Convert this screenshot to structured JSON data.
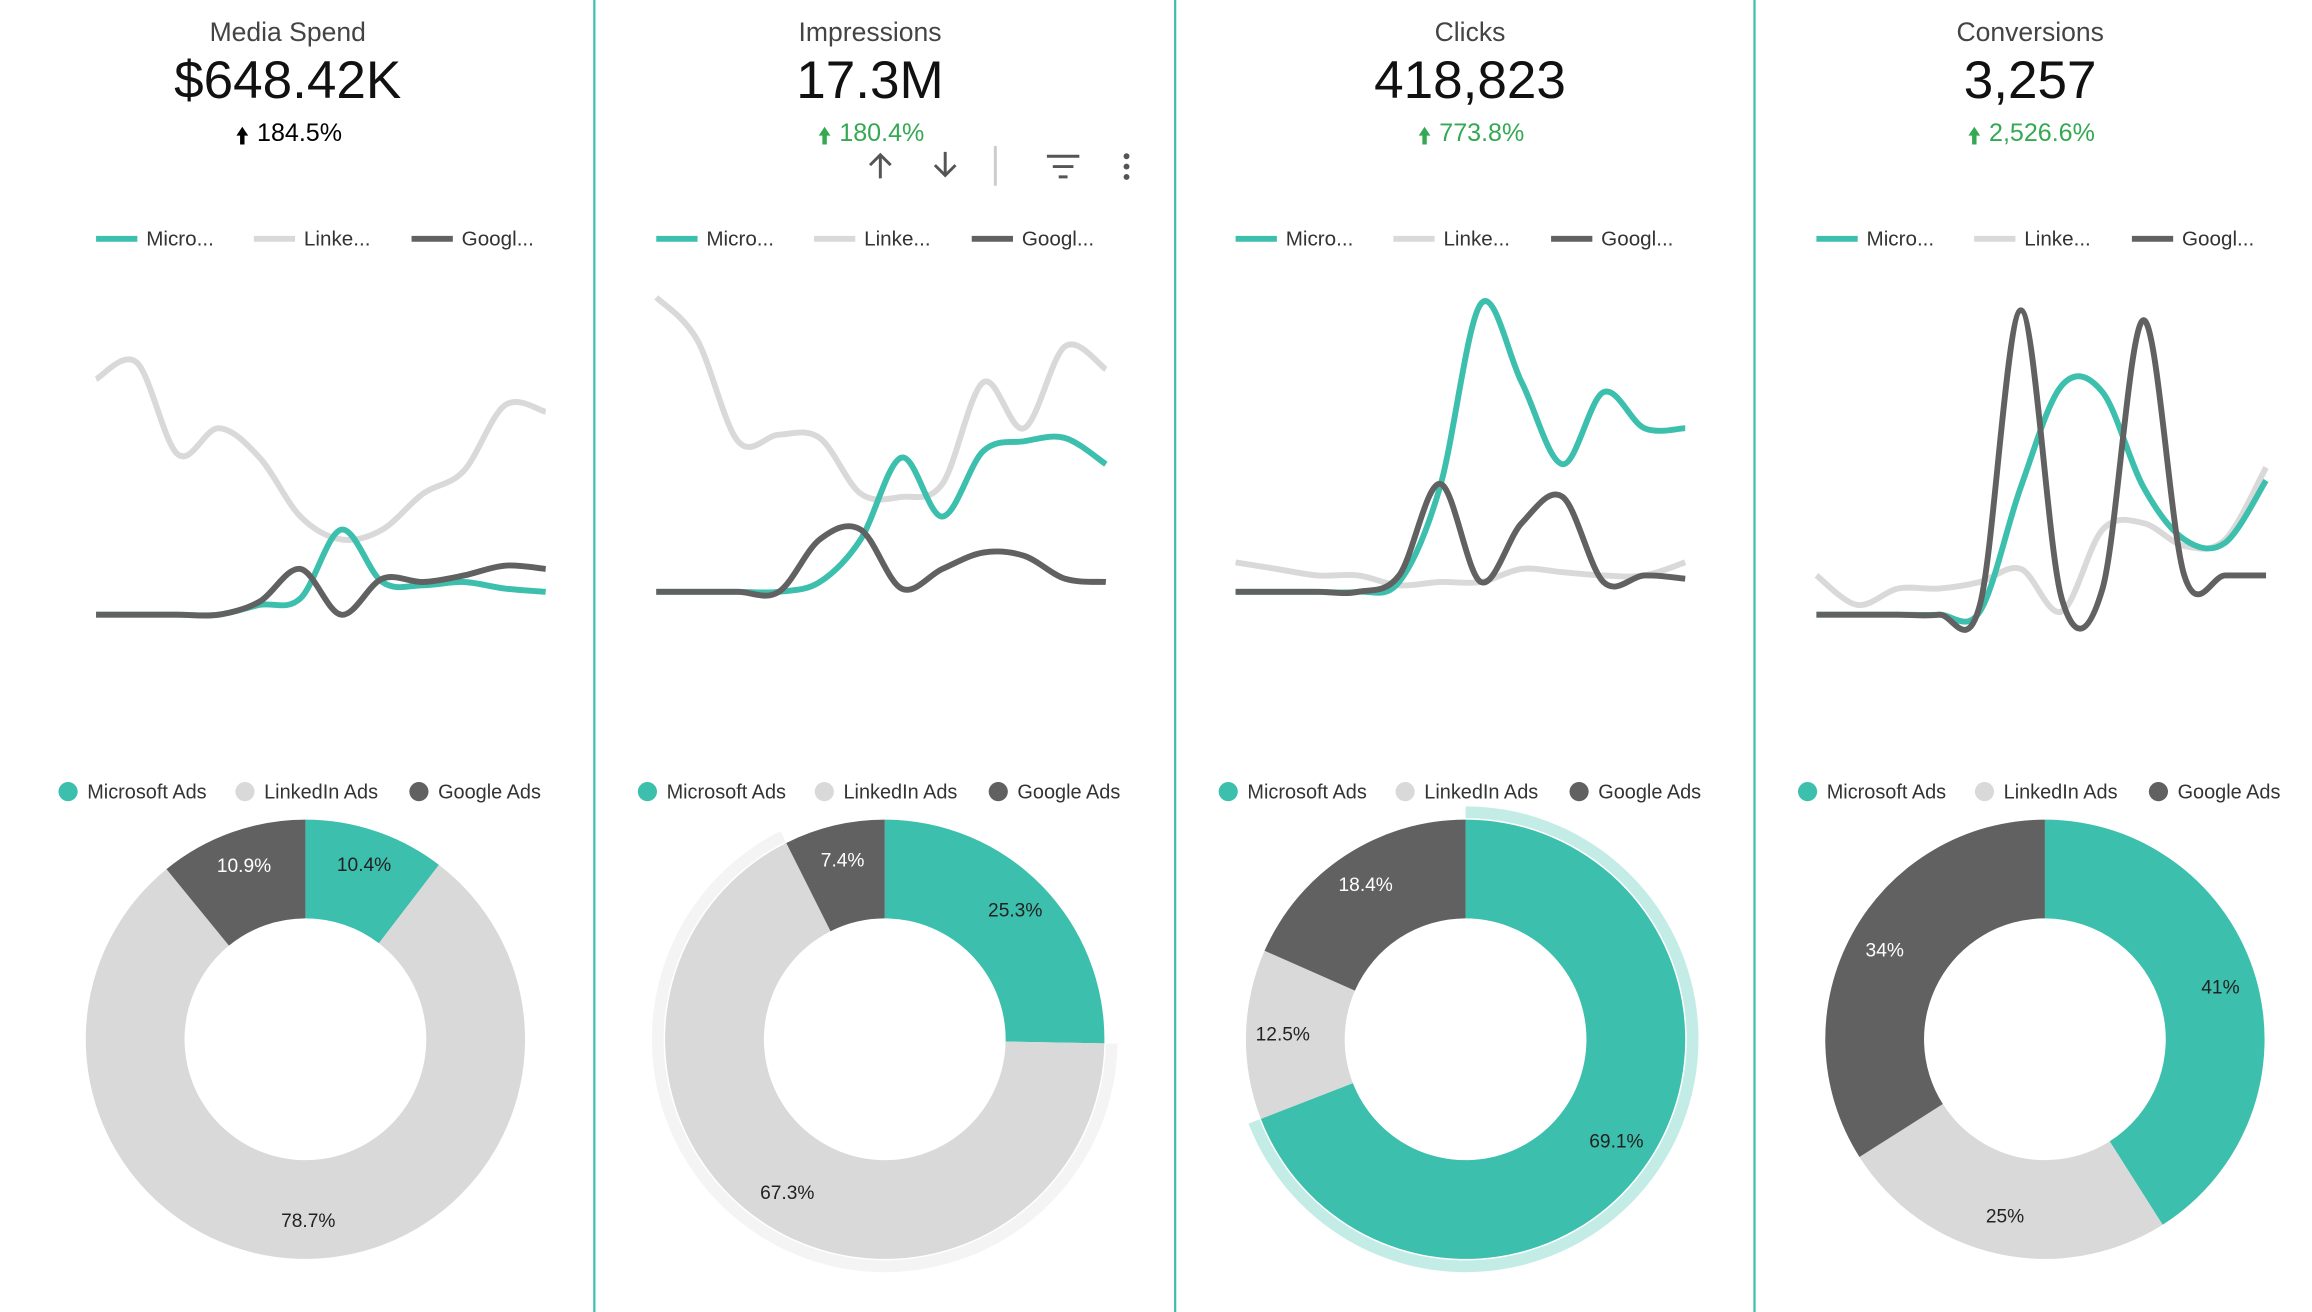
{
  "scorecards": [
    {
      "title": "Media Spend",
      "value": "$648.42K",
      "change": "184.5%",
      "change_color": "#000000"
    },
    {
      "title": "Impressions",
      "value": "17.3M",
      "change": "180.4%",
      "change_color": "#34a853"
    },
    {
      "title": "Clicks",
      "value": "418,823",
      "change": "773.8%",
      "change_color": "#34a853"
    },
    {
      "title": "Conversions",
      "value": "3,257",
      "change": "2,526.6%",
      "change_color": "#34a853"
    }
  ],
  "chart_data": [
    {
      "type": "line",
      "categories": [
        null,
        null,
        null,
        null,
        null,
        null,
        null,
        null,
        null,
        null,
        null,
        null
      ],
      "ylim": [
        0,
        100
      ],
      "legend": "top",
      "series": [
        {
          "name": "Micro...",
          "color": "#3dbfad",
          "values": [
            0,
            0,
            0,
            0,
            3,
            5,
            26,
            10,
            9,
            10,
            8,
            7
          ]
        },
        {
          "name": "Linke...",
          "color": "#d9d9d9",
          "values": [
            72,
            77,
            49,
            57,
            48,
            30,
            23,
            26,
            37,
            44,
            64,
            62
          ]
        },
        {
          "name": "Googl...",
          "color": "#616161",
          "values": [
            0,
            0,
            0,
            0,
            4,
            14,
            0,
            11,
            10,
            12,
            15,
            14
          ]
        }
      ]
    },
    {
      "type": "pie",
      "donut": true,
      "legend": "top",
      "categories": [
        "Microsoft Ads",
        "LinkedIn Ads",
        "Google Ads"
      ],
      "colors": [
        "#3dbfad",
        "#d9d9d9",
        "#616161"
      ],
      "values": [
        10.4,
        78.7,
        10.9
      ],
      "value_labels": [
        "10.4%",
        "78.7%",
        "10.9%"
      ]
    },
    {
      "type": "line",
      "categories": [
        null,
        null,
        null,
        null,
        null,
        null,
        null,
        null,
        null,
        null,
        null,
        null
      ],
      "ylim": [
        0,
        100
      ],
      "legend": "top",
      "series": [
        {
          "name": "Micro...",
          "color": "#3dbfad",
          "values": [
            7,
            7,
            7,
            7,
            10,
            23,
            48,
            30,
            50,
            53,
            54,
            46
          ]
        },
        {
          "name": "Linke...",
          "color": "#d9d9d9",
          "values": [
            97,
            84,
            53,
            55,
            54,
            37,
            36,
            40,
            71,
            57,
            82,
            75
          ]
        },
        {
          "name": "Googl...",
          "color": "#616161",
          "values": [
            7,
            7,
            7,
            7,
            23,
            26,
            8,
            14,
            19,
            18,
            11,
            10
          ]
        }
      ]
    },
    {
      "type": "pie",
      "donut": true,
      "legend": "top",
      "categories": [
        "Microsoft Ads",
        "LinkedIn Ads",
        "Google Ads"
      ],
      "highlight": 1,
      "colors": [
        "#3dbfad",
        "#d9d9d9",
        "#616161"
      ],
      "values": [
        25.3,
        67.3,
        7.4
      ],
      "value_labels": [
        "25.3%",
        "67.3%",
        "7.4%"
      ]
    },
    {
      "type": "line",
      "categories": [
        null,
        null,
        null,
        null,
        null,
        null,
        null,
        null,
        null,
        null,
        null,
        null
      ],
      "ylim": [
        0,
        100
      ],
      "legend": "top",
      "series": [
        {
          "name": "Micro...",
          "color": "#3dbfad",
          "values": [
            7,
            7,
            7,
            7,
            10,
            39,
            95,
            71,
            46,
            68,
            57,
            57
          ]
        },
        {
          "name": "Linke...",
          "color": "#d9d9d9",
          "values": [
            16,
            14,
            12,
            12,
            9,
            10,
            10,
            14,
            13,
            12,
            12,
            16
          ]
        },
        {
          "name": "Googl...",
          "color": "#616161",
          "values": [
            7,
            7,
            7,
            7,
            12,
            40,
            10,
            28,
            36,
            10,
            12,
            11
          ]
        }
      ]
    },
    {
      "type": "pie",
      "donut": true,
      "legend": "top",
      "categories": [
        "Microsoft Ads",
        "LinkedIn Ads",
        "Google Ads"
      ],
      "highlight": 0,
      "colors": [
        "#3dbfad",
        "#d9d9d9",
        "#616161"
      ],
      "values": [
        69.1,
        12.5,
        18.4
      ],
      "value_labels": [
        "69.1%",
        "12.5%",
        "18.4%"
      ]
    },
    {
      "type": "line",
      "categories": [
        null,
        null,
        null,
        null,
        null,
        null,
        null,
        null,
        null,
        null,
        null,
        null
      ],
      "ylim": [
        0,
        100
      ],
      "legend": "top",
      "series": [
        {
          "name": "Micro...",
          "color": "#3dbfad",
          "values": [
            0,
            0,
            0,
            0,
            1,
            39,
            70,
            68,
            39,
            23,
            22,
            41
          ]
        },
        {
          "name": "Linke...",
          "color": "#d9d9d9",
          "values": [
            12,
            3,
            8,
            8,
            10,
            14,
            1,
            26,
            28,
            21,
            23,
            45
          ]
        },
        {
          "name": "Googl...",
          "color": "#616161",
          "values": [
            0,
            0,
            0,
            0,
            3,
            93,
            5,
            8,
            90,
            12,
            12,
            12
          ]
        }
      ]
    },
    {
      "type": "pie",
      "donut": true,
      "legend": "top",
      "categories": [
        "Microsoft Ads",
        "LinkedIn Ads",
        "Google Ads"
      ],
      "colors": [
        "#3dbfad",
        "#d9d9d9",
        "#616161"
      ],
      "values": [
        41,
        25,
        34
      ],
      "value_labels": [
        "41%",
        "25%",
        "34%"
      ]
    }
  ]
}
